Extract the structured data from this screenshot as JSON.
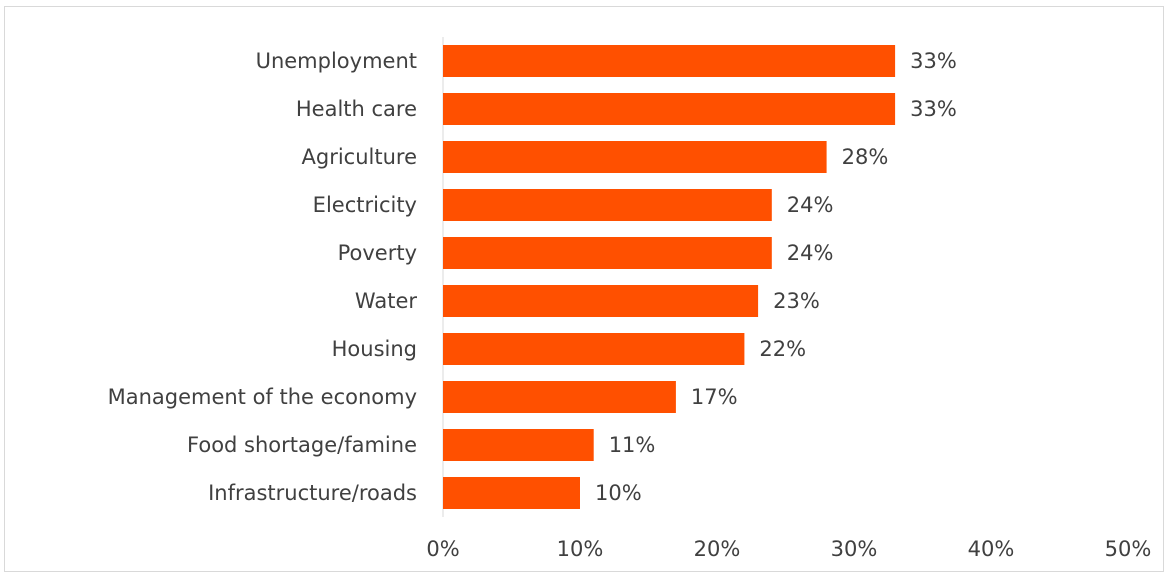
{
  "chart_data": {
    "type": "bar",
    "orientation": "horizontal",
    "categories": [
      "Unemployment",
      "Health care",
      "Agriculture",
      "Electricity",
      "Poverty",
      "Water",
      "Housing",
      "Management of the economy",
      "Food shortage/famine",
      "Infrastructure/roads"
    ],
    "values": [
      33,
      33,
      28,
      24,
      24,
      23,
      22,
      17,
      11,
      10
    ],
    "data_labels": [
      "33%",
      "33%",
      "28%",
      "24%",
      "24%",
      "23%",
      "22%",
      "17%",
      "11%",
      "10%"
    ],
    "xlim": [
      0,
      50
    ],
    "x_ticks": [
      0,
      10,
      20,
      30,
      40,
      50
    ],
    "x_tick_labels": [
      "0%",
      "10%",
      "20%",
      "30%",
      "40%",
      "50%"
    ],
    "title": "",
    "xlabel": "",
    "ylabel": "",
    "grid": false,
    "legend": "none",
    "bar_color": "#ff5000"
  }
}
